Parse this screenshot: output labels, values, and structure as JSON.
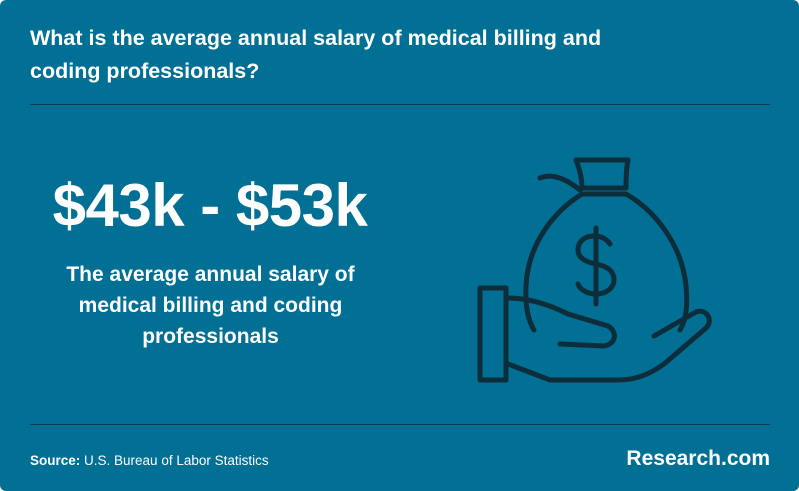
{
  "question": "What is the average annual salary of medical billing and coding professionals?",
  "headline": "$43k - $53k",
  "subtext": "The average annual salary of medical billing and coding professionals",
  "source": {
    "label": "Source:",
    "text": "U.S. Bureau of Labor Statistics"
  },
  "brand": "Research.com",
  "illustration": {
    "icon": "hand-holding-money-bag-icon",
    "symbol": "$"
  },
  "colors": {
    "background": "#026f94",
    "text": "#ffffff",
    "icon_stroke": "#0d2d3a",
    "divider": "#0e3a4c"
  }
}
